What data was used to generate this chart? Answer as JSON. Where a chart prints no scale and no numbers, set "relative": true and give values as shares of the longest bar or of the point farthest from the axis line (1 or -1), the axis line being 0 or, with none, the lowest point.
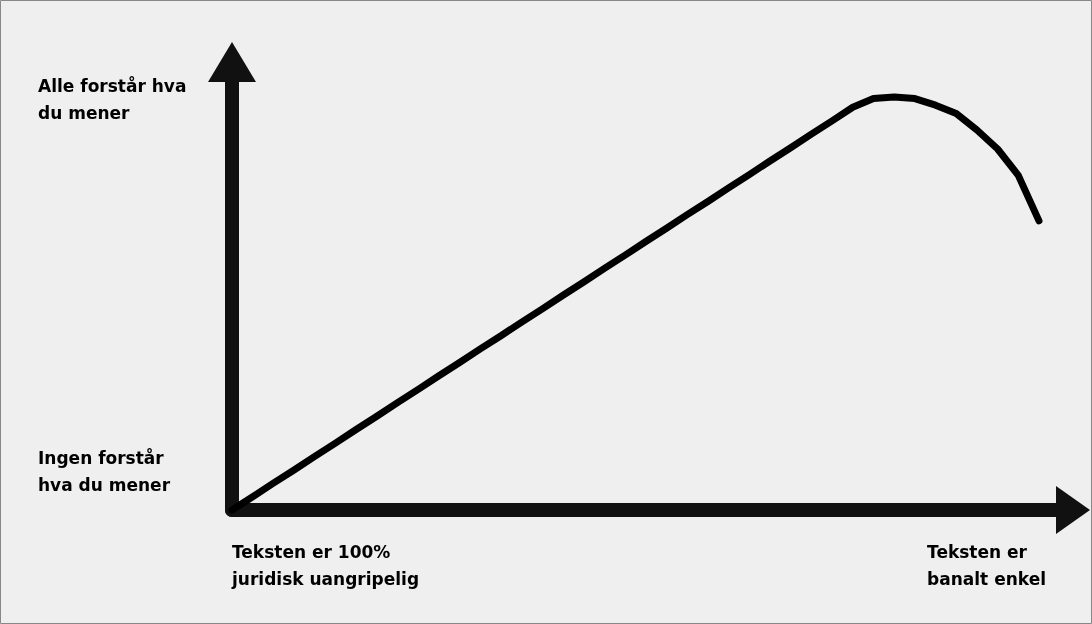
{
  "chart_data": {
    "type": "line",
    "relative": true,
    "categories": [
      null,
      null,
      null,
      null,
      null,
      null,
      null,
      null,
      null,
      null,
      null,
      null,
      null,
      null,
      null,
      null,
      null,
      null,
      null,
      null,
      null,
      null,
      null,
      null,
      null,
      null,
      null,
      null,
      null,
      null,
      null,
      null,
      null,
      null,
      null,
      null,
      null,
      null,
      null,
      null
    ],
    "series": [
      {
        "color": "#000000",
        "values": [
          0,
          0.032,
          0.065,
          0.097,
          0.13,
          0.162,
          0.195,
          0.227,
          0.26,
          0.292,
          0.325,
          0.357,
          0.39,
          0.422,
          0.455,
          0.487,
          0.52,
          0.552,
          0.585,
          0.617,
          0.65,
          0.682,
          0.715,
          0.747,
          0.78,
          0.812,
          0.845,
          0.877,
          0.91,
          0.942,
          0.975,
          0.996,
          1,
          0.996,
          0.98,
          0.96,
          0.92,
          0.874,
          0.81,
          0.7
        ]
      }
    ],
    "annotations": [
      "Alle forstår hva\ndu mener",
      "Ingen forstår\nhva du mener",
      "Teksten er 100%\njuridisk uangripelig",
      "Teksten er\nbanalt enkel"
    ],
    "marker": "none",
    "line_style": "solid",
    "grid": false
  }
}
